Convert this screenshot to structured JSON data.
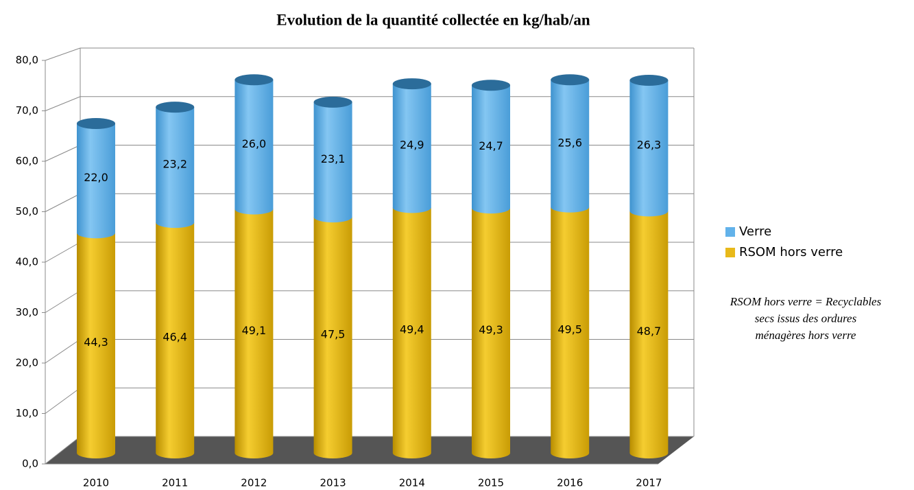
{
  "chart_data": {
    "type": "bar3d_stacked",
    "title": "Evolution de la quantité collectée en kg/hab/an",
    "categories": [
      "2010",
      "2011",
      "2012",
      "2013",
      "2014",
      "2015",
      "2016",
      "2017"
    ],
    "series": [
      {
        "name": "RSOM hors verre",
        "color": "#e8b91a",
        "values": [
          44.3,
          46.4,
          49.1,
          47.5,
          49.4,
          49.3,
          49.5,
          48.7
        ],
        "value_labels": [
          "44,3",
          "46,4",
          "49,1",
          "47,5",
          "49,4",
          "49,3",
          "49,5",
          "48,7"
        ]
      },
      {
        "name": "Verre",
        "color": "#62b2ea",
        "values": [
          22.0,
          23.2,
          26.0,
          23.1,
          24.9,
          24.7,
          25.6,
          26.3
        ],
        "value_labels": [
          "22,0",
          "23,2",
          "26,0",
          "23,1",
          "24,9",
          "24,7",
          "25,6",
          "26,3"
        ]
      }
    ],
    "ylim": [
      0,
      80
    ],
    "yticks": [
      {
        "value": 0,
        "label": "0,0"
      },
      {
        "value": 10,
        "label": "10,0"
      },
      {
        "value": 20,
        "label": "20,0"
      },
      {
        "value": 30,
        "label": "30,0"
      },
      {
        "value": 40,
        "label": "40,0"
      },
      {
        "value": 50,
        "label": "50,0"
      },
      {
        "value": 60,
        "label": "60,0"
      },
      {
        "value": 70,
        "label": "70,0"
      },
      {
        "value": 80,
        "label": "80,0"
      }
    ],
    "grid": true,
    "legend": "right",
    "note": [
      "RSOM hors verre = Recyclables",
      "secs issus des ordures",
      "ménagères hors verre"
    ]
  }
}
